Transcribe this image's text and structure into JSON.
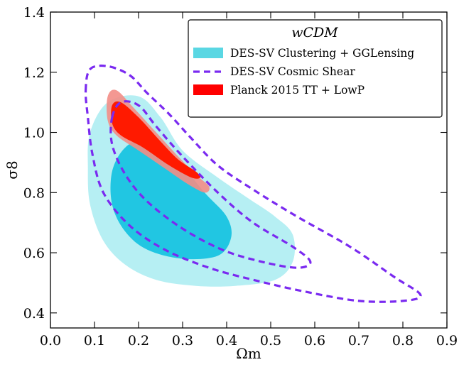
{
  "chart_data": {
    "type": "contour",
    "xlabel": "Ωm",
    "ylabel": "σ8",
    "xlim": [
      0.0,
      0.9
    ],
    "ylim": [
      0.35,
      1.4
    ],
    "xticks": [
      "0.0",
      "0.1",
      "0.2",
      "0.3",
      "0.4",
      "0.5",
      "0.6",
      "0.7",
      "0.8",
      "0.9"
    ],
    "yticks": [
      "0.4",
      "0.6",
      "0.8",
      "1.0",
      "1.2",
      "1.4"
    ],
    "grid": false,
    "legend": {
      "title": "wCDM",
      "placement": "top-right",
      "entries": [
        {
          "label": "DES-SV Clustering + GGLensing",
          "color": "#5ad7e3",
          "style": "filled"
        },
        {
          "label": "DES-SV Cosmic Shear",
          "color": "#7a2af0",
          "style": "dashed"
        },
        {
          "label": "Planck 2015 TT + LowP",
          "color": "#ff0000",
          "style": "filled"
        }
      ]
    },
    "colors": {
      "clustering_outer": "#b6eff3",
      "clustering_inner": "#21c6e2",
      "shear": "#7a2af0",
      "planck_outer": "#f38d86",
      "planck_inner": "#ff1a00"
    },
    "series": [
      {
        "name": "DES-SV Clustering + GGLensing",
        "contours": [
          {
            "level": "95%",
            "points": [
              [
                0.09,
                1.0
              ],
              [
                0.13,
                1.1
              ],
              [
                0.2,
                1.12
              ],
              [
                0.25,
                1.05
              ],
              [
                0.3,
                0.94
              ],
              [
                0.38,
                0.85
              ],
              [
                0.45,
                0.78
              ],
              [
                0.51,
                0.72
              ],
              [
                0.55,
                0.66
              ],
              [
                0.55,
                0.57
              ],
              [
                0.51,
                0.51
              ],
              [
                0.42,
                0.49
              ],
              [
                0.33,
                0.49
              ],
              [
                0.24,
                0.51
              ],
              [
                0.17,
                0.56
              ],
              [
                0.12,
                0.64
              ],
              [
                0.09,
                0.76
              ],
              [
                0.085,
                0.88
              ]
            ]
          },
          {
            "level": "68%",
            "points": [
              [
                0.14,
                0.87
              ],
              [
                0.17,
                0.95
              ],
              [
                0.22,
                0.98
              ],
              [
                0.28,
                0.92
              ],
              [
                0.35,
                0.8
              ],
              [
                0.4,
                0.72
              ],
              [
                0.41,
                0.65
              ],
              [
                0.38,
                0.59
              ],
              [
                0.3,
                0.58
              ],
              [
                0.22,
                0.61
              ],
              [
                0.17,
                0.67
              ],
              [
                0.14,
                0.76
              ]
            ]
          }
        ]
      },
      {
        "name": "DES-SV Cosmic Shear",
        "contours": [
          {
            "level": "95%",
            "points": [
              [
                0.08,
                1.14
              ],
              [
                0.09,
                1.21
              ],
              [
                0.13,
                1.22
              ],
              [
                0.18,
                1.19
              ],
              [
                0.22,
                1.13
              ],
              [
                0.27,
                1.06
              ],
              [
                0.32,
                0.98
              ],
              [
                0.38,
                0.89
              ],
              [
                0.46,
                0.81
              ],
              [
                0.56,
                0.72
              ],
              [
                0.68,
                0.62
              ],
              [
                0.78,
                0.52
              ],
              [
                0.84,
                0.46
              ],
              [
                0.8,
                0.44
              ],
              [
                0.7,
                0.44
              ],
              [
                0.58,
                0.47
              ],
              [
                0.46,
                0.51
              ],
              [
                0.36,
                0.55
              ],
              [
                0.26,
                0.61
              ],
              [
                0.18,
                0.69
              ],
              [
                0.12,
                0.8
              ],
              [
                0.095,
                0.93
              ],
              [
                0.085,
                1.05
              ]
            ]
          },
          {
            "level": "68%",
            "points": [
              [
                0.14,
                1.05
              ],
              [
                0.16,
                1.1
              ],
              [
                0.2,
                1.09
              ],
              [
                0.24,
                1.02
              ],
              [
                0.3,
                0.92
              ],
              [
                0.38,
                0.8
              ],
              [
                0.46,
                0.7
              ],
              [
                0.55,
                0.62
              ],
              [
                0.59,
                0.57
              ],
              [
                0.56,
                0.55
              ],
              [
                0.48,
                0.57
              ],
              [
                0.39,
                0.61
              ],
              [
                0.3,
                0.68
              ],
              [
                0.22,
                0.77
              ],
              [
                0.17,
                0.86
              ],
              [
                0.14,
                0.96
              ]
            ]
          }
        ]
      },
      {
        "name": "Planck 2015 TT + LowP",
        "contours": [
          {
            "level": "95%",
            "points": [
              [
                0.13,
                1.12
              ],
              [
                0.15,
                1.14
              ],
              [
                0.19,
                1.08
              ],
              [
                0.24,
                1.0
              ],
              [
                0.29,
                0.92
              ],
              [
                0.33,
                0.86
              ],
              [
                0.36,
                0.82
              ],
              [
                0.35,
                0.8
              ],
              [
                0.31,
                0.83
              ],
              [
                0.26,
                0.88
              ],
              [
                0.2,
                0.94
              ],
              [
                0.15,
                0.99
              ],
              [
                0.13,
                1.04
              ]
            ]
          },
          {
            "level": "68%",
            "points": [
              [
                0.14,
                1.09
              ],
              [
                0.16,
                1.1
              ],
              [
                0.2,
                1.05
              ],
              [
                0.25,
                0.97
              ],
              [
                0.29,
                0.91
              ],
              [
                0.33,
                0.87
              ],
              [
                0.34,
                0.85
              ],
              [
                0.32,
                0.85
              ],
              [
                0.27,
                0.89
              ],
              [
                0.21,
                0.95
              ],
              [
                0.16,
                0.99
              ],
              [
                0.14,
                1.03
              ]
            ]
          }
        ]
      }
    ]
  }
}
